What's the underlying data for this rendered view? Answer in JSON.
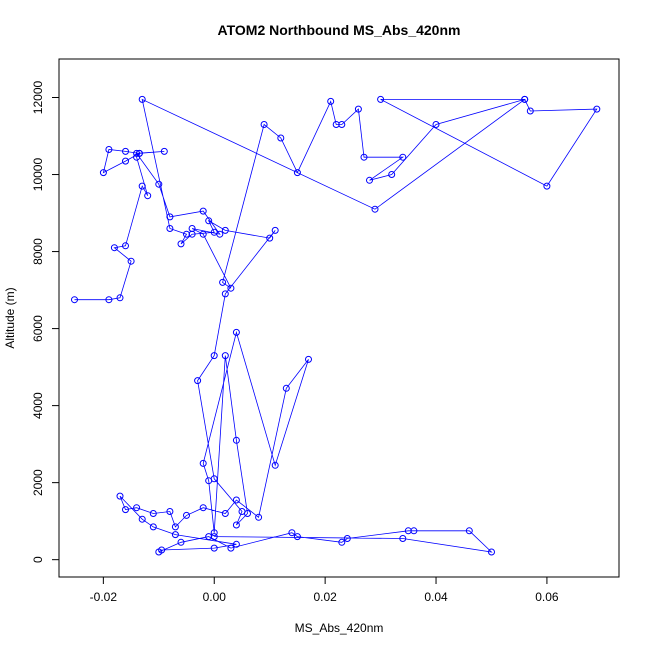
{
  "chart_data": {
    "type": "line",
    "title": "ATOM2 Northbound MS_Abs_420nm",
    "xlabel": "MS_Abs_420nm",
    "ylabel": "Altitude (m)",
    "xlim": [
      -0.028,
      0.073
    ],
    "ylim": [
      -450,
      13000
    ],
    "xticks": [
      -0.02,
      0.0,
      0.02,
      0.04,
      0.06
    ],
    "xtick_labels": [
      "-0.02",
      "0.00",
      "0.02",
      "0.04",
      "0.06"
    ],
    "yticks": [
      0,
      2000,
      4000,
      6000,
      8000,
      10000,
      12000
    ],
    "ytick_labels": [
      "0",
      "2000",
      "4000",
      "6000",
      "8000",
      "10000",
      "12000"
    ],
    "grid": false,
    "colors": {
      "series": "#0000ff"
    },
    "series": [
      {
        "x": [
          -0.0252,
          -0.019,
          -0.017,
          -0.015,
          -0.018,
          -0.016,
          -0.013,
          -0.012,
          -0.014,
          -0.0135,
          -0.016,
          -0.019,
          -0.02,
          -0.016,
          -0.0135,
          -0.009,
          -0.014,
          -0.01,
          -0.008,
          -0.002,
          0.001,
          -0.004,
          -0.002,
          0.003,
          0.0015,
          0.009,
          0.012,
          0.015,
          0.021,
          0.022,
          0.023,
          0.026,
          0.027,
          0.034,
          0.028,
          0.032,
          0.04,
          0.056,
          0.057,
          0.069,
          0.06,
          0.03,
          0.056,
          0.029,
          -0.013,
          -0.008,
          -0.005,
          -0.006,
          -0.004,
          0.0,
          -0.001,
          0.002,
          0.01,
          0.011,
          0.002,
          0.0,
          -0.003,
          0.0,
          0.005,
          0.004,
          0.006,
          0.004,
          0.002,
          0.0,
          -0.001,
          -0.002,
          0.004,
          0.011,
          0.017,
          0.013,
          0.008,
          0.004,
          0.002,
          -0.002,
          -0.005,
          -0.007,
          -0.008,
          -0.011,
          -0.014,
          -0.016,
          -0.017,
          -0.013,
          -0.011,
          -0.007,
          0.004,
          0.0,
          -0.0095,
          -0.01,
          -0.006,
          -0.001,
          0.003,
          0.014,
          0.015,
          0.023,
          0.024,
          0.035,
          0.036,
          0.046,
          0.05,
          0.034,
          0.0
        ],
        "y": [
          6750,
          6750,
          6800,
          7750,
          8100,
          8150,
          9700,
          9450,
          10450,
          10550,
          10600,
          10650,
          10050,
          10350,
          10550,
          10600,
          10550,
          9750,
          8900,
          9050,
          8450,
          8600,
          8450,
          7050,
          7200,
          11300,
          10950,
          10050,
          11900,
          11300,
          11300,
          11700,
          10450,
          10450,
          9850,
          10000,
          11300,
          11950,
          11650,
          11700,
          9700,
          11950,
          11950,
          9100,
          11950,
          8600,
          8450,
          8200,
          8450,
          8500,
          8800,
          8550,
          8350,
          8550,
          6900,
          5300,
          4650,
          2100,
          1250,
          900,
          1200,
          3100,
          5300,
          700,
          2050,
          2500,
          5900,
          2450,
          5200,
          4450,
          1100,
          1550,
          1200,
          1350,
          1150,
          850,
          1250,
          1200,
          1350,
          1300,
          1650,
          1050,
          850,
          650,
          400,
          300,
          250,
          200,
          450,
          600,
          300,
          700,
          600,
          450,
          550,
          750,
          750,
          750,
          200,
          550,
          600
        ]
      }
    ]
  }
}
